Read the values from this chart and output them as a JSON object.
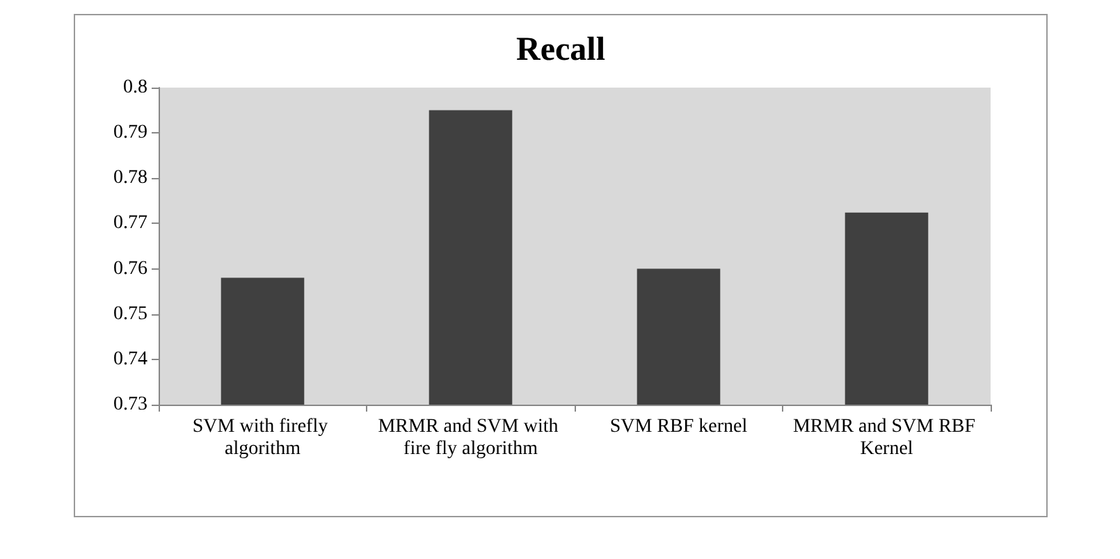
{
  "chart_data": {
    "type": "bar",
    "title": "Recall",
    "categories": [
      "SVM with firefly algorithm",
      "MRMR and SVM with fire fly algorithm",
      "SVM RBF kernel",
      "MRMR and SVM RBF Kernel"
    ],
    "values": [
      0.758,
      0.795,
      0.76,
      0.7724
    ],
    "color": "#404040",
    "ylim": [
      0.73,
      0.8
    ],
    "yticks": [
      0.73,
      0.74,
      0.75,
      0.76,
      0.77,
      0.78,
      0.79,
      0.8
    ],
    "grid": false
  }
}
